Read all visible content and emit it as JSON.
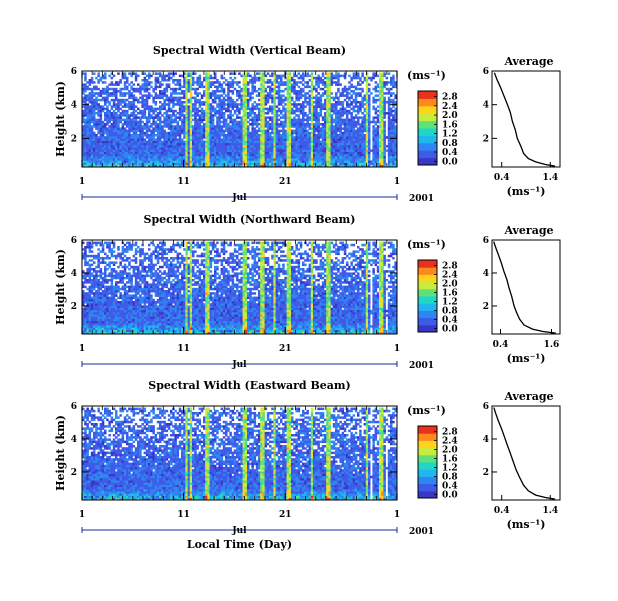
{
  "chart_data": [
    {
      "type": "heatmap",
      "title": "Spectral Width (Vertical Beam)",
      "ylabel": "Height (km)",
      "x_ticks": [
        "1",
        "11",
        "21",
        "1"
      ],
      "x_month": "Jul",
      "year": "2001",
      "y_ticks": [
        "6",
        "4",
        "2"
      ],
      "ylim": [
        0.3,
        6
      ],
      "colorbar": {
        "unit": "(ms⁻¹)",
        "ticks": [
          "2.8",
          "2.4",
          "2.0",
          "1.6",
          "1.2",
          "0.8",
          "0.4",
          "0.0"
        ]
      },
      "average": {
        "title": "Average",
        "xlabel": "(ms⁻¹)",
        "x_ticks": [
          "0.4",
          "1.4"
        ],
        "xlim": [
          0.2,
          1.6
        ],
        "y_ticks": [
          "6",
          "4",
          "2"
        ],
        "profile": [
          [
            1.5,
            0.35
          ],
          [
            1.3,
            0.45
          ],
          [
            1.1,
            0.6
          ],
          [
            0.95,
            0.8
          ],
          [
            0.85,
            1.1
          ],
          [
            0.8,
            1.5
          ],
          [
            0.72,
            2.0
          ],
          [
            0.68,
            2.5
          ],
          [
            0.62,
            3.0
          ],
          [
            0.58,
            3.5
          ],
          [
            0.52,
            4.0
          ],
          [
            0.45,
            4.5
          ],
          [
            0.38,
            5.0
          ],
          [
            0.3,
            5.5
          ],
          [
            0.25,
            5.9
          ]
        ]
      }
    },
    {
      "type": "heatmap",
      "title": "Spectral Width (Northward Beam)",
      "ylabel": "Height (km)",
      "x_ticks": [
        "1",
        "11",
        "21",
        "1"
      ],
      "x_month": "Jul",
      "year": "2001",
      "y_ticks": [
        "6",
        "4",
        "2"
      ],
      "ylim": [
        0.3,
        6
      ],
      "colorbar": {
        "unit": "(ms⁻¹)",
        "ticks": [
          "2.8",
          "2.4",
          "2.0",
          "1.6",
          "1.2",
          "0.8",
          "0.4",
          "0.0"
        ]
      },
      "average": {
        "title": "Average",
        "xlabel": "(ms⁻¹)",
        "x_ticks": [
          "0.4",
          "1.6"
        ],
        "xlim": [
          0.2,
          1.8
        ],
        "y_ticks": [
          "6",
          "4",
          "2"
        ],
        "profile": [
          [
            1.7,
            0.35
          ],
          [
            1.4,
            0.45
          ],
          [
            1.15,
            0.6
          ],
          [
            0.95,
            0.85
          ],
          [
            0.85,
            1.2
          ],
          [
            0.78,
            1.6
          ],
          [
            0.72,
            2.0
          ],
          [
            0.66,
            2.6
          ],
          [
            0.6,
            3.1
          ],
          [
            0.55,
            3.6
          ],
          [
            0.48,
            4.1
          ],
          [
            0.42,
            4.6
          ],
          [
            0.35,
            5.1
          ],
          [
            0.28,
            5.6
          ],
          [
            0.24,
            5.9
          ]
        ]
      }
    },
    {
      "type": "heatmap",
      "title": "Spectral Width (Eastward Beam)",
      "ylabel": "Height (km)",
      "x_ticks": [
        "1",
        "11",
        "21",
        "1"
      ],
      "x_month": "Jul",
      "x_label": "Local Time (Day)",
      "year": "2001",
      "y_ticks": [
        "6",
        "4",
        "2"
      ],
      "ylim": [
        0.3,
        6
      ],
      "colorbar": {
        "unit": "(ms⁻¹)",
        "ticks": [
          "2.8",
          "2.4",
          "2.0",
          "1.6",
          "1.2",
          "0.8",
          "0.4",
          "0.0"
        ]
      },
      "average": {
        "title": "Average",
        "xlabel": "(ms⁻¹)",
        "x_ticks": [
          "0.4",
          "1.4"
        ],
        "xlim": [
          0.2,
          1.6
        ],
        "y_ticks": [
          "6",
          "4",
          "2"
        ],
        "profile": [
          [
            1.5,
            0.35
          ],
          [
            1.3,
            0.45
          ],
          [
            1.1,
            0.6
          ],
          [
            0.95,
            0.85
          ],
          [
            0.85,
            1.2
          ],
          [
            0.78,
            1.6
          ],
          [
            0.7,
            2.1
          ],
          [
            0.64,
            2.6
          ],
          [
            0.58,
            3.1
          ],
          [
            0.52,
            3.6
          ],
          [
            0.46,
            4.1
          ],
          [
            0.4,
            4.6
          ],
          [
            0.33,
            5.1
          ],
          [
            0.27,
            5.6
          ],
          [
            0.24,
            5.9
          ]
        ]
      }
    }
  ]
}
